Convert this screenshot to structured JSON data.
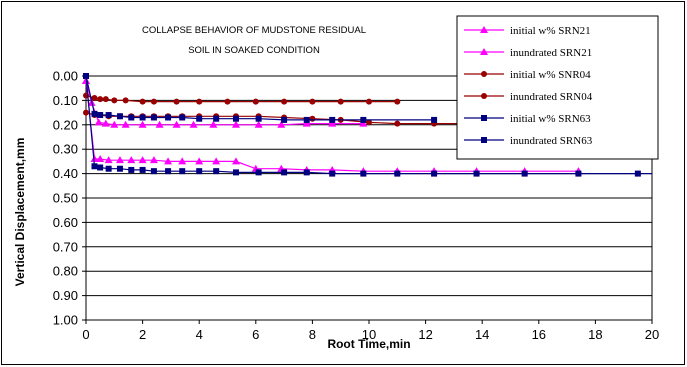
{
  "chart_data": {
    "type": "line",
    "title_line1": "COLLAPSE BEHAVIOR OF MUDSTONE RESIDUAL",
    "title_line2": "SOIL IN SOAKED CONDITION",
    "xlabel": "Root Time,min",
    "ylabel": "Vertical Displacement,mm",
    "xlim": [
      0,
      20
    ],
    "ylim": [
      0,
      1.0
    ],
    "y_inverted": true,
    "x_ticks": [
      "0",
      "2",
      "4",
      "6",
      "8",
      "10",
      "12",
      "14",
      "16",
      "18",
      "20"
    ],
    "y_ticks": [
      "0.00",
      "0.10",
      "0.20",
      "0.30",
      "0.40",
      "0.50",
      "0.60",
      "0.70",
      "0.80",
      "0.90",
      "1.00"
    ],
    "grid": "horizontal",
    "legend_position": "top-right",
    "series": [
      {
        "name": "initial w% SRN21",
        "color": "#ff00ff",
        "marker": "triangle",
        "points": [
          [
            0,
            0.02
          ],
          [
            0.2,
            0.11
          ],
          [
            0.45,
            0.19
          ],
          [
            0.7,
            0.195
          ],
          [
            1,
            0.2
          ],
          [
            1.4,
            0.2
          ],
          [
            2,
            0.2
          ],
          [
            2.6,
            0.2
          ],
          [
            3.2,
            0.2
          ],
          [
            3.8,
            0.2
          ],
          [
            4.5,
            0.2
          ],
          [
            5.3,
            0.2
          ],
          [
            6.1,
            0.2
          ],
          [
            6.9,
            0.2
          ],
          [
            7.8,
            0.195
          ],
          [
            8.7,
            0.195
          ],
          [
            9.8,
            0.195
          ]
        ]
      },
      {
        "name": "inundrated SRN21",
        "color": "#ff00ff",
        "marker": "triangle",
        "points": [
          [
            0,
            0.02
          ],
          [
            0.3,
            0.34
          ],
          [
            0.5,
            0.34
          ],
          [
            0.8,
            0.345
          ],
          [
            1.2,
            0.345
          ],
          [
            1.6,
            0.345
          ],
          [
            2,
            0.345
          ],
          [
            2.4,
            0.345
          ],
          [
            2.9,
            0.35
          ],
          [
            3.4,
            0.35
          ],
          [
            4,
            0.35
          ],
          [
            4.6,
            0.35
          ],
          [
            5.3,
            0.35
          ],
          [
            6.0,
            0.38
          ],
          [
            6.9,
            0.38
          ],
          [
            7.8,
            0.385
          ],
          [
            8.7,
            0.385
          ],
          [
            9.8,
            0.39
          ],
          [
            11,
            0.39
          ],
          [
            12.3,
            0.39
          ],
          [
            13.8,
            0.39
          ],
          [
            15.5,
            0.39
          ],
          [
            17.4,
            0.39
          ]
        ]
      },
      {
        "name": "initial w% SNR04",
        "color": "#990000",
        "marker": "circle",
        "points": [
          [
            0,
            0.08
          ],
          [
            0.3,
            0.09
          ],
          [
            0.5,
            0.095
          ],
          [
            0.7,
            0.095
          ],
          [
            1,
            0.1
          ],
          [
            1.4,
            0.1
          ],
          [
            2,
            0.105
          ],
          [
            2.4,
            0.105
          ],
          [
            3.2,
            0.105
          ],
          [
            4,
            0.105
          ],
          [
            5,
            0.105
          ],
          [
            6,
            0.105
          ],
          [
            7,
            0.105
          ],
          [
            8,
            0.105
          ],
          [
            9,
            0.105
          ],
          [
            10,
            0.105
          ],
          [
            11,
            0.105
          ]
        ]
      },
      {
        "name": "inundrated SRN04",
        "color": "#990000",
        "marker": "circle",
        "points": [
          [
            0,
            0.15
          ],
          [
            0.3,
            0.16
          ],
          [
            0.5,
            0.16
          ],
          [
            0.8,
            0.165
          ],
          [
            1.2,
            0.165
          ],
          [
            1.6,
            0.165
          ],
          [
            2,
            0.165
          ],
          [
            2.4,
            0.165
          ],
          [
            2.9,
            0.165
          ],
          [
            3.4,
            0.165
          ],
          [
            4,
            0.165
          ],
          [
            4.6,
            0.165
          ],
          [
            5.3,
            0.165
          ],
          [
            6.1,
            0.165
          ],
          [
            7,
            0.17
          ],
          [
            8,
            0.175
          ],
          [
            9,
            0.18
          ],
          [
            10,
            0.19
          ],
          [
            11,
            0.195
          ],
          [
            12.3,
            0.195
          ],
          [
            13.8,
            0.195
          ]
        ]
      },
      {
        "name": "initial w% SRN63",
        "color": "#000080",
        "marker": "square",
        "points": [
          [
            0,
            0.0
          ],
          [
            0.3,
            0.155
          ],
          [
            0.5,
            0.16
          ],
          [
            0.8,
            0.16
          ],
          [
            1.2,
            0.165
          ],
          [
            1.6,
            0.17
          ],
          [
            2,
            0.17
          ],
          [
            2.4,
            0.17
          ],
          [
            2.9,
            0.17
          ],
          [
            3.4,
            0.17
          ],
          [
            4,
            0.175
          ],
          [
            4.6,
            0.175
          ],
          [
            5.3,
            0.175
          ],
          [
            6.1,
            0.175
          ],
          [
            7,
            0.18
          ],
          [
            7.8,
            0.18
          ],
          [
            8.7,
            0.18
          ],
          [
            9.8,
            0.18
          ],
          [
            12.3,
            0.18
          ]
        ]
      },
      {
        "name": "inundrated SRN63",
        "color": "#000080",
        "marker": "square",
        "points": [
          [
            0,
            0.0
          ],
          [
            0.3,
            0.37
          ],
          [
            0.5,
            0.375
          ],
          [
            0.8,
            0.38
          ],
          [
            1.2,
            0.38
          ],
          [
            1.6,
            0.385
          ],
          [
            2,
            0.385
          ],
          [
            2.4,
            0.39
          ],
          [
            2.9,
            0.39
          ],
          [
            3.4,
            0.39
          ],
          [
            4,
            0.39
          ],
          [
            4.6,
            0.39
          ],
          [
            5.3,
            0.395
          ],
          [
            6.1,
            0.395
          ],
          [
            7,
            0.395
          ],
          [
            7.8,
            0.395
          ],
          [
            8.7,
            0.4
          ],
          [
            9.8,
            0.4
          ],
          [
            11,
            0.4
          ],
          [
            12.3,
            0.4
          ],
          [
            13.8,
            0.4
          ],
          [
            15.5,
            0.4
          ],
          [
            17.4,
            0.4
          ],
          [
            19.5,
            0.4
          ]
        ]
      }
    ]
  }
}
